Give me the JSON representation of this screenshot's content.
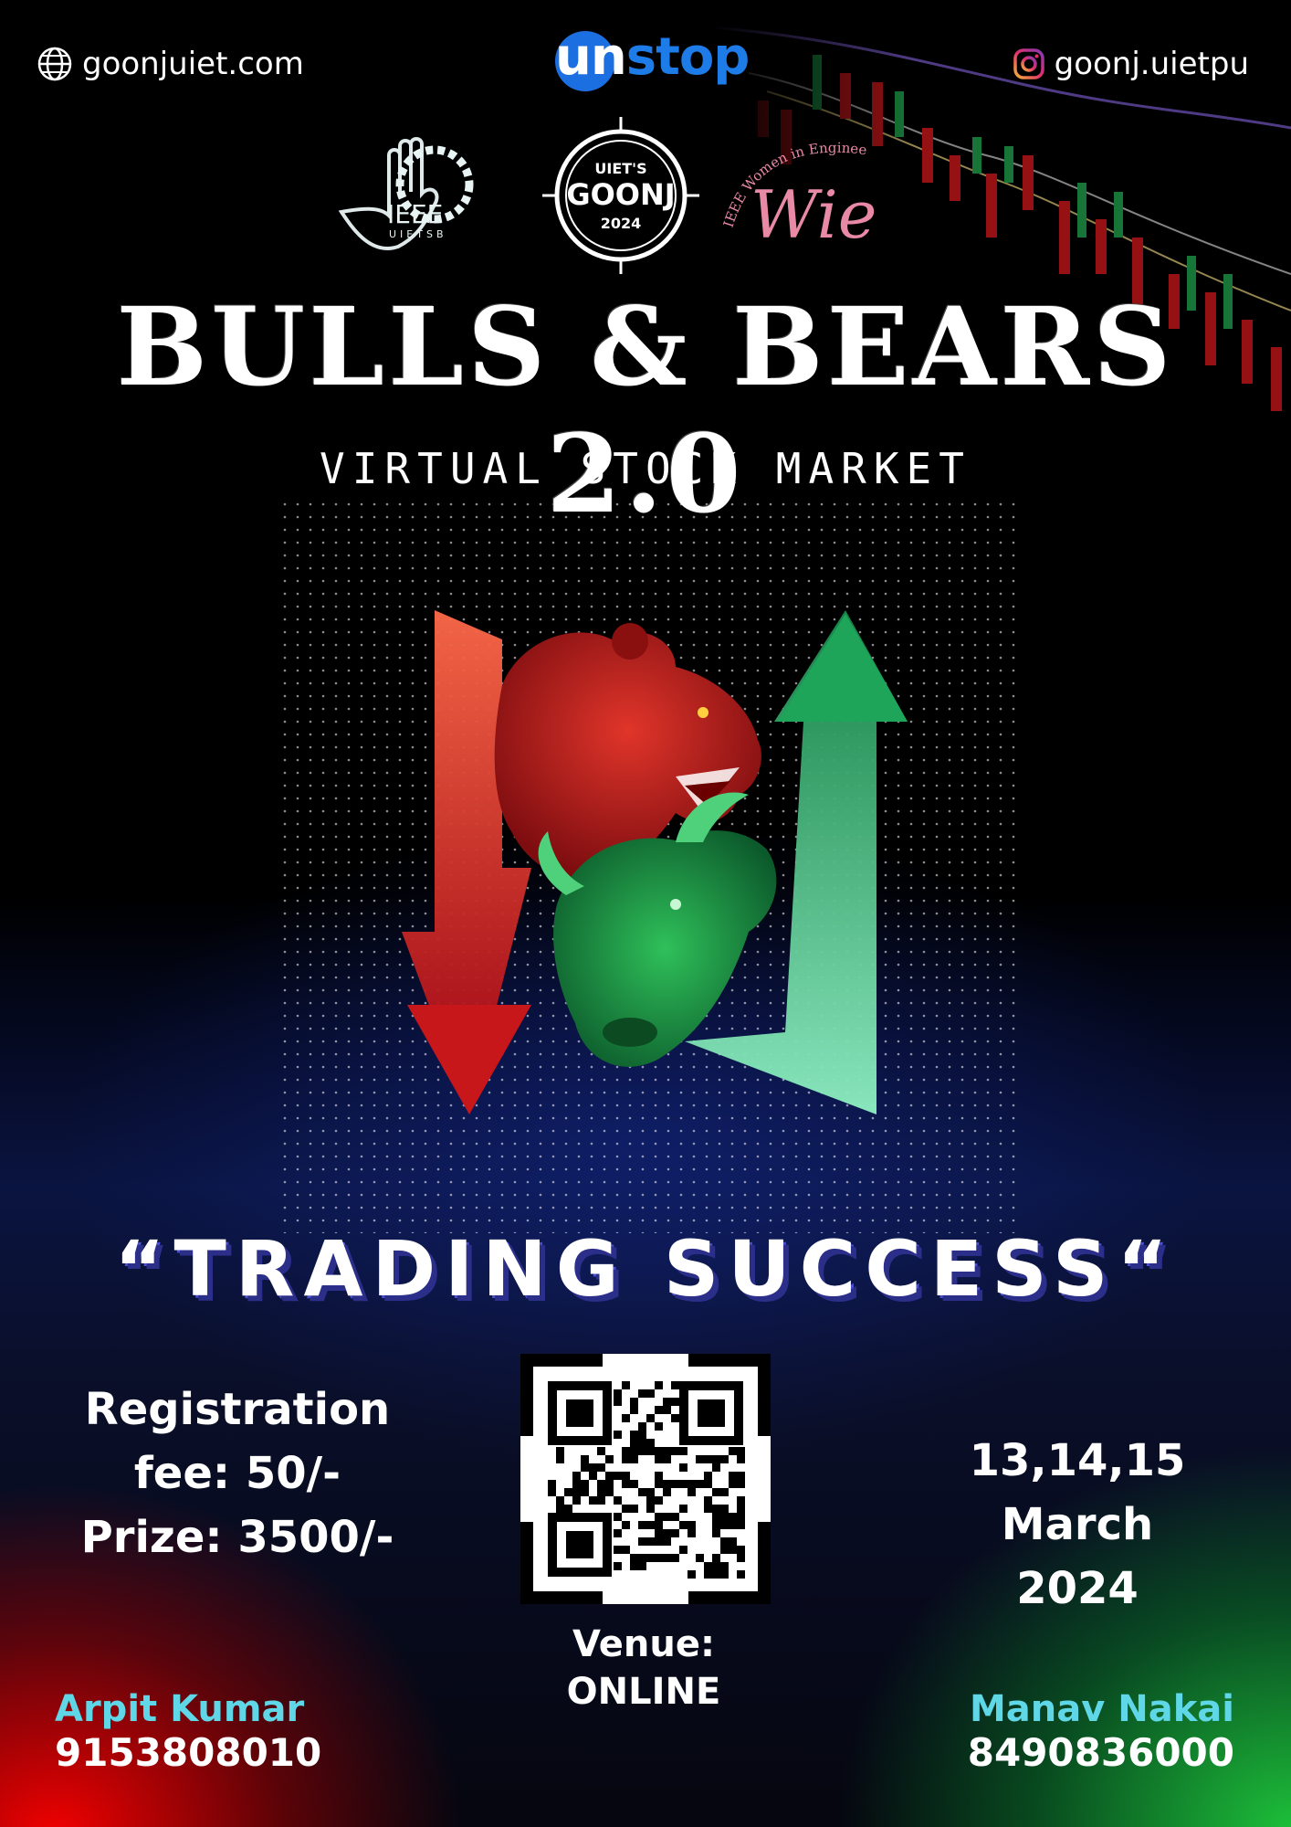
{
  "header": {
    "website": "goonjuiet.com",
    "website_icon": "globe-icon",
    "sponsor_logo_un": "un",
    "sponsor_logo_stop": "stop",
    "instagram": "goonj.uietpu",
    "instagram_icon": "instagram-icon"
  },
  "logos": {
    "ieee_text": "IEEE",
    "ieee_sub": "UIETSB",
    "goonj_top": "UIET'S",
    "goonj_main": "GOONJ",
    "goonj_year": "2024",
    "wie_arc": "IEEE Women in Engineering",
    "wie_main": "Wie"
  },
  "event": {
    "title": "BULLS & BEARS 2.0",
    "subtitle": "VIRTUAL STOCK MARKET",
    "tagline": "“TRADING SUCCESS“"
  },
  "details": {
    "registration_line1": "Registration",
    "registration_line2": "fee: 50/-",
    "prize": "Prize: 3500/-",
    "date_line1": "13,14,15 March",
    "date_line2": "2024",
    "venue_label": "Venue:",
    "venue_value": "ONLINE"
  },
  "contacts": [
    {
      "name": "Arpit Kumar",
      "phone": "9153808010"
    },
    {
      "name": "Manav Nakai",
      "phone": "8490836000"
    }
  ],
  "colors": {
    "bear_red": "#c8171b",
    "bull_green": "#1fa55a",
    "contact_name": "#5fd7e6",
    "unstop_blue": "#1e7ce8",
    "tagline_shadow": "#2c2f8a"
  }
}
